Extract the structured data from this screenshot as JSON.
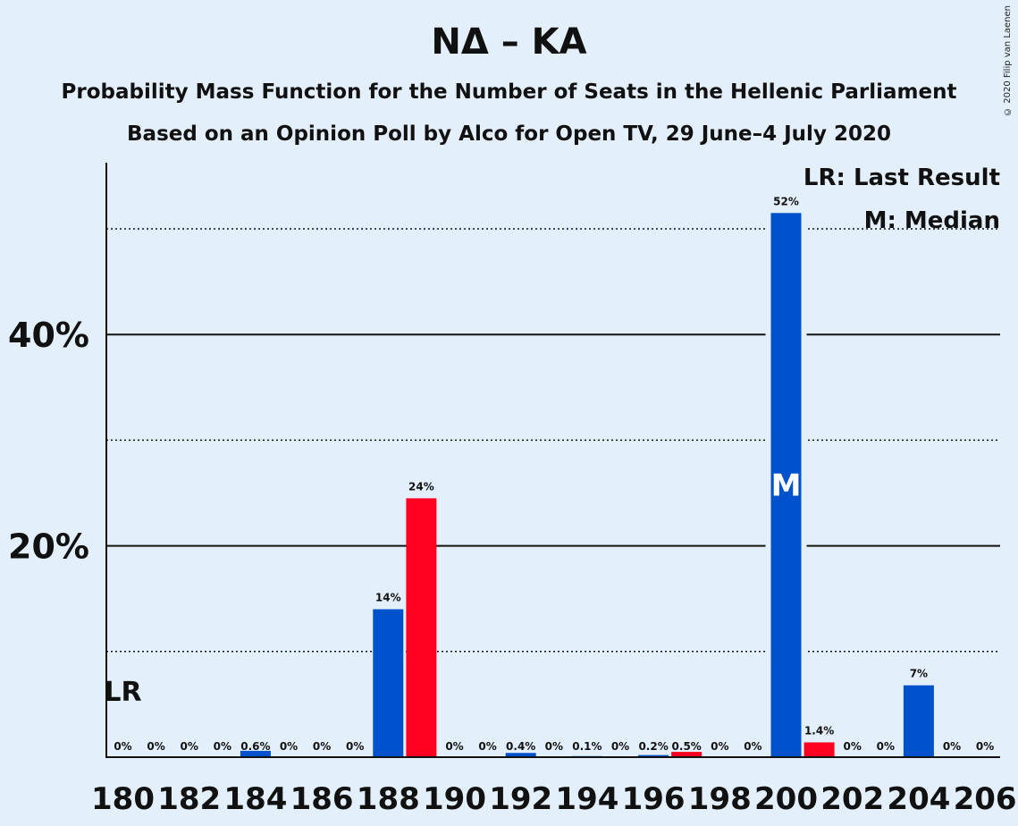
{
  "header": {
    "title": "ΝΔ – ΚΑ",
    "subtitle": "Probability Mass Function for the Number of Seats in the Hellenic Parliament",
    "source": "Based on an Opinion Poll by Alco for Open TV, 29 June–4 July 2020",
    "copyright": "© 2020 Filip van Laenen"
  },
  "legend": {
    "last_result": "LR: Last Result",
    "median": "M: Median"
  },
  "chart_data": {
    "type": "bar",
    "title": "ΝΔ – ΚΑ",
    "x": [
      180,
      181,
      182,
      183,
      184,
      185,
      186,
      187,
      188,
      189,
      190,
      191,
      192,
      193,
      194,
      195,
      196,
      197,
      198,
      199,
      200,
      201,
      202,
      203,
      204,
      205,
      206
    ],
    "values": [
      0,
      0,
      0,
      0,
      0.6,
      0,
      0,
      0,
      14,
      24.5,
      0,
      0,
      0.4,
      0,
      0.1,
      0,
      0.2,
      0.5,
      0,
      0,
      51.5,
      1.4,
      0,
      0,
      6.8,
      0,
      0
    ],
    "labels": [
      "0%",
      "0%",
      "0%",
      "0%",
      "0.6%",
      "0%",
      "0%",
      "0%",
      "14%",
      "24%",
      "0%",
      "0%",
      "0.4%",
      "0%",
      "0.1%",
      "0%",
      "0.2%",
      "0.5%",
      "0%",
      "0%",
      "52%",
      "1.4%",
      "0%",
      "0%",
      "7%",
      "0%",
      "0%"
    ],
    "red_bars": [
      189,
      197,
      201
    ],
    "x_tick_labels": [
      "180",
      "182",
      "184",
      "186",
      "188",
      "190",
      "192",
      "194",
      "196",
      "198",
      "200",
      "202",
      "204",
      "206"
    ],
    "y_tick_labels": [
      "20%",
      "40%"
    ],
    "ylim": [
      0,
      56
    ],
    "solid_gridlines": [
      20,
      40
    ],
    "dotted_gridlines": [
      10,
      30,
      50
    ],
    "last_result_seat": 180,
    "last_result_marker": "LR",
    "median_seat": 200,
    "median_marker": "M",
    "colors": {
      "blue": "#0052cc",
      "red": "#ff0020",
      "background": "#e3f0fc",
      "text": "#111111"
    }
  }
}
